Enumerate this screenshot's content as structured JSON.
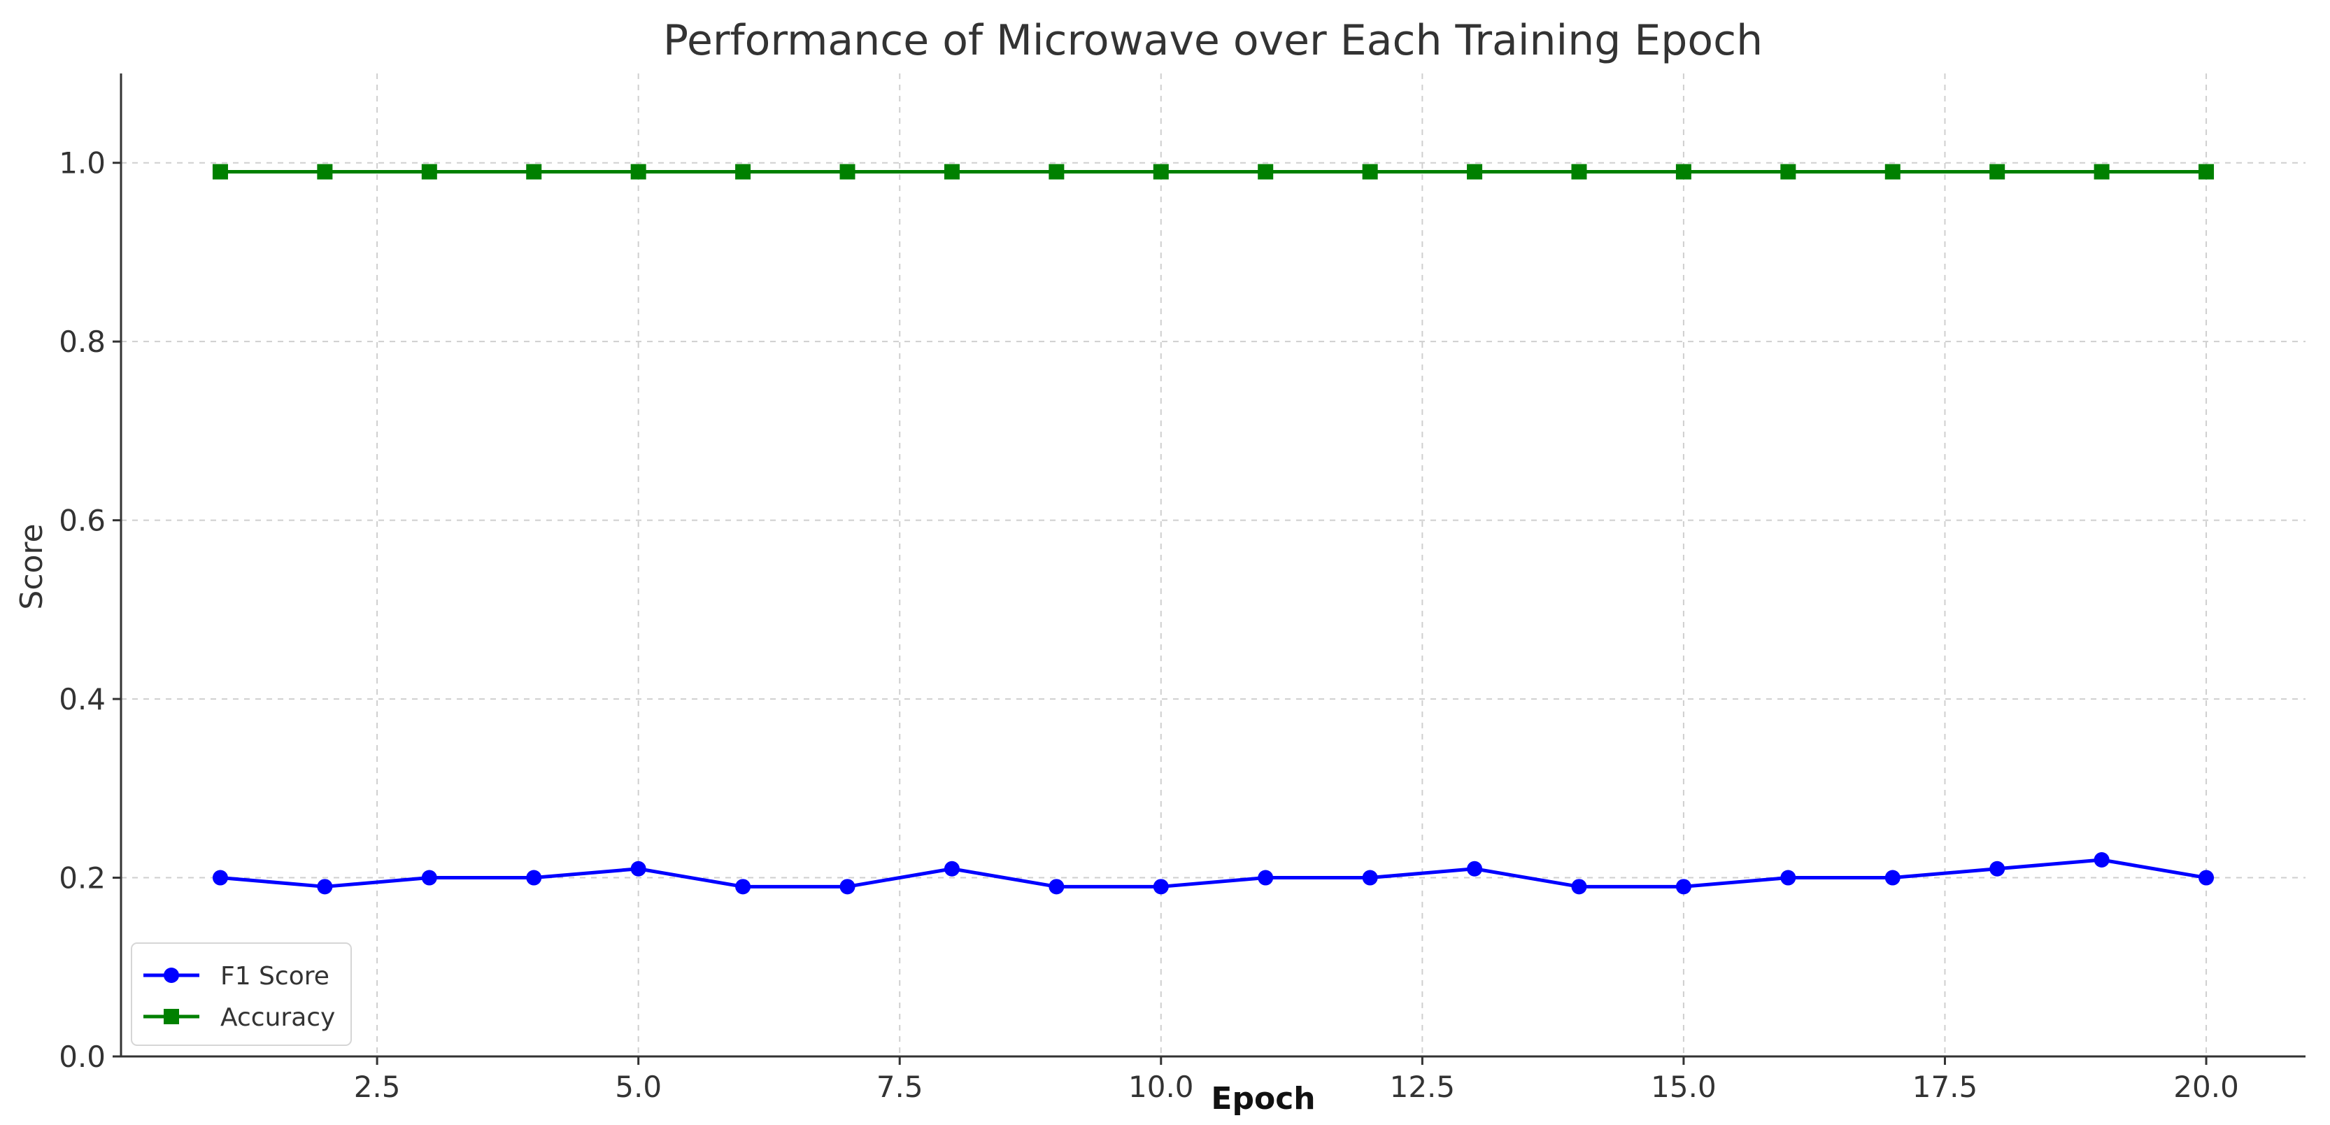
{
  "chart_data": {
    "type": "line",
    "title": "Performance of Microwave over Each Training Epoch",
    "xlabel": "Epoch",
    "ylabel": "Score",
    "x": [
      1,
      2,
      3,
      4,
      5,
      6,
      7,
      8,
      9,
      10,
      11,
      12,
      13,
      14,
      15,
      16,
      17,
      18,
      19,
      20
    ],
    "xlim": [
      0.05,
      20.95
    ],
    "ylim": [
      0,
      1.1
    ],
    "xticks": [
      "2.5",
      "5.0",
      "7.5",
      "10.0",
      "12.5",
      "15.0",
      "17.5",
      "20.0"
    ],
    "yticks": [
      "0.0",
      "0.2",
      "0.4",
      "0.6",
      "0.8",
      "1.0"
    ],
    "grid": true,
    "legend_position": "lower-left",
    "series": [
      {
        "name": "F1 Score",
        "color": "#0000ff",
        "marker": "circle",
        "values": [
          0.2,
          0.19,
          0.2,
          0.2,
          0.21,
          0.19,
          0.19,
          0.21,
          0.19,
          0.19,
          0.2,
          0.2,
          0.21,
          0.19,
          0.19,
          0.2,
          0.2,
          0.21,
          0.22,
          0.2
        ]
      },
      {
        "name": "Accuracy",
        "color": "#008000",
        "marker": "square",
        "values": [
          0.99,
          0.99,
          0.99,
          0.99,
          0.99,
          0.99,
          0.99,
          0.99,
          0.99,
          0.99,
          0.99,
          0.99,
          0.99,
          0.99,
          0.99,
          0.99,
          0.99,
          0.99,
          0.99,
          0.99
        ]
      }
    ]
  }
}
